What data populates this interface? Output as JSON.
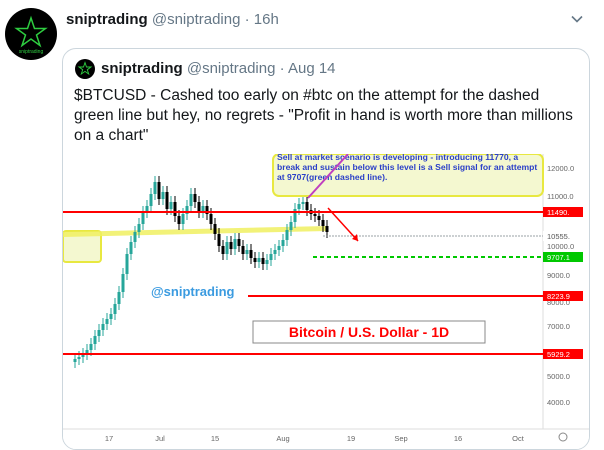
{
  "tweet": {
    "display_name": "sniptrading",
    "handle": "@sniptrading",
    "separator": "·",
    "time": "16h",
    "avatar_text": "sniptrading"
  },
  "quoted_tweet": {
    "display_name": "sniptrading",
    "handle": "@sniptrading",
    "separator": "·",
    "date": "Aug 14",
    "text": "$BTCUSD - Cashed too early on #btc on the attempt for the dashed green line but hey, no regrets - \"Profit in hand is worth more than millions on a chart\""
  },
  "chart": {
    "title": "Bitcoin / U.S. Dollar - 1D",
    "watermark": "@sniptrading",
    "annotation": "Sell at market scenario is developing - introducing 11770, a break and sustain below this level is a Sell signal for an attempt at 9707(green dashed line).",
    "x_ticks": [
      "17",
      "Jul",
      "15",
      "Aug",
      "19",
      "Sep",
      "16",
      "Oct"
    ],
    "y_ticks": [
      "12000.0",
      "11000.0",
      "10000.0",
      "9000.0",
      "8000.0",
      "7000.0",
      "6000.0",
      "5000.0",
      "4000.0"
    ],
    "price_labels": [
      "11490.",
      "10555.",
      "9707.1",
      "8223.9",
      "5929.2"
    ],
    "colors": {
      "up": "#26a69a",
      "down": "#000000",
      "red_line": "#ff0000",
      "green_dashed": "#00c800",
      "annotation_bg": "#f4f8d0",
      "annotation_text": "#2a3fc8"
    }
  }
}
